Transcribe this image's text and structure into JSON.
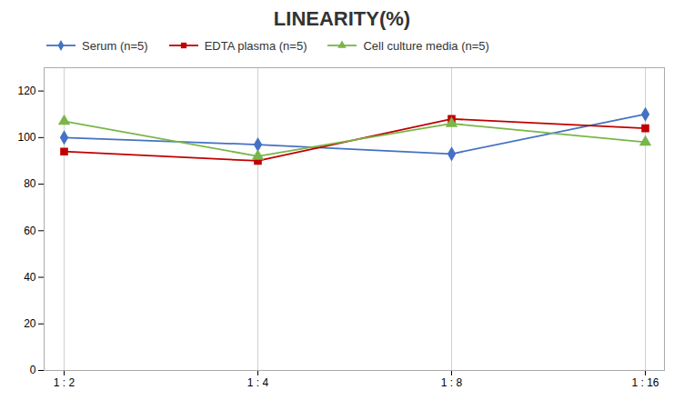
{
  "chart_data": {
    "type": "line",
    "title": "LINEARITY(%)",
    "categories": [
      "1 : 2",
      "1 : 4",
      "1 : 8",
      "1 : 16"
    ],
    "series": [
      {
        "name": "Serum (n=5)",
        "color": "#4472C4",
        "marker": "diamond",
        "values": [
          100,
          97,
          93,
          110
        ]
      },
      {
        "name": "EDTA plasma (n=5)",
        "color": "#C00000",
        "marker": "square",
        "values": [
          94,
          90,
          108,
          104
        ]
      },
      {
        "name": "Cell culture media (n=5)",
        "color": "#7AB648",
        "marker": "triangle",
        "values": [
          107,
          92,
          106,
          98
        ]
      }
    ],
    "ylim": [
      0,
      130
    ],
    "yticks": [
      0,
      20,
      40,
      60,
      80,
      100,
      120
    ],
    "grid": "x",
    "legend": "top"
  }
}
